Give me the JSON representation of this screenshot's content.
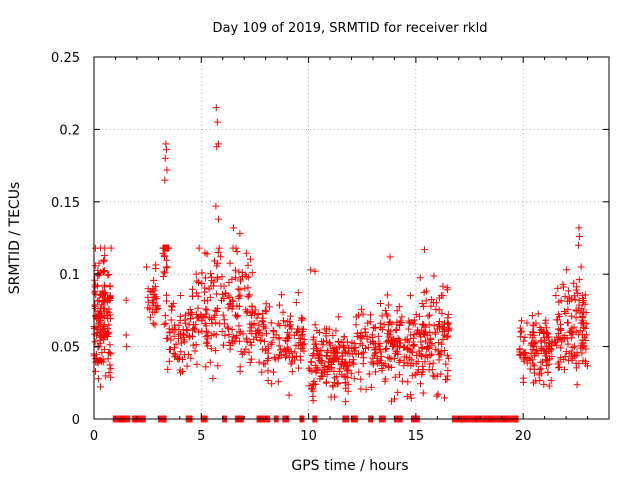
{
  "chart_data": {
    "type": "scatter",
    "title": "Day 109 of 2019, SRMTID for receiver rkld",
    "xlabel": "GPS time / hours",
    "ylabel": "SRMTID / TECUs",
    "xlim": [
      0,
      24
    ],
    "ylim": [
      0,
      0.25
    ],
    "xticks": [
      0,
      5,
      10,
      15,
      20
    ],
    "xtick_labels": [
      "0",
      "5",
      "10",
      "15",
      "20"
    ],
    "yticks": [
      0,
      0.05,
      0.1,
      0.15,
      0.2,
      0.25
    ],
    "ytick_labels": [
      "0",
      "0.05",
      "0.1",
      "0.15",
      "0.2",
      "0.25"
    ],
    "grid": true,
    "marker": "+",
    "color": "#ff0000",
    "seed": 109,
    "series": [
      {
        "name": "SRMTID",
        "clusters": [
          {
            "x": [
              0.0,
              0.8
            ],
            "y_center": 0.072,
            "y_spread": 0.025,
            "count": 150
          },
          {
            "x": [
              2.5,
              3.0
            ],
            "y_center": 0.082,
            "y_spread": 0.012,
            "count": 30
          },
          {
            "x": [
              3.2,
              3.5
            ],
            "y_center": 0.12,
            "y_spread": 0.05,
            "count": 35
          },
          {
            "x": [
              3.5,
              4.5
            ],
            "y_center": 0.055,
            "y_spread": 0.015,
            "count": 60
          },
          {
            "x": [
              4.5,
              7.5
            ],
            "y_center": 0.075,
            "y_spread": 0.025,
            "count": 200
          },
          {
            "x": [
              7.5,
              9.8
            ],
            "y_center": 0.055,
            "y_spread": 0.018,
            "count": 130
          },
          {
            "x": [
              10.0,
              12.0
            ],
            "y_center": 0.04,
            "y_spread": 0.015,
            "count": 160
          },
          {
            "x": [
              12.0,
              15.0
            ],
            "y_center": 0.05,
            "y_spread": 0.018,
            "count": 200
          },
          {
            "x": [
              15.0,
              16.6
            ],
            "y_center": 0.055,
            "y_spread": 0.022,
            "count": 130
          },
          {
            "x": [
              19.8,
              21.5
            ],
            "y_center": 0.048,
            "y_spread": 0.013,
            "count": 120
          },
          {
            "x": [
              21.5,
              23.0
            ],
            "y_center": 0.065,
            "y_spread": 0.018,
            "count": 130
          }
        ],
        "peaks": [
          {
            "x": 3.35,
            "y": 0.19
          },
          {
            "x": 3.38,
            "y": 0.186
          },
          {
            "x": 3.32,
            "y": 0.18
          },
          {
            "x": 3.4,
            "y": 0.172
          },
          {
            "x": 3.3,
            "y": 0.165
          },
          {
            "x": 5.7,
            "y": 0.215
          },
          {
            "x": 5.75,
            "y": 0.205
          },
          {
            "x": 5.8,
            "y": 0.19
          },
          {
            "x": 5.72,
            "y": 0.188
          },
          {
            "x": 5.68,
            "y": 0.147
          },
          {
            "x": 5.8,
            "y": 0.138
          },
          {
            "x": 6.5,
            "y": 0.132
          },
          {
            "x": 6.8,
            "y": 0.128
          },
          {
            "x": 15.4,
            "y": 0.117
          },
          {
            "x": 10.1,
            "y": 0.103
          },
          {
            "x": 10.3,
            "y": 0.102
          },
          {
            "x": 13.8,
            "y": 0.112
          },
          {
            "x": 22.6,
            "y": 0.132
          },
          {
            "x": 22.62,
            "y": 0.126
          },
          {
            "x": 22.58,
            "y": 0.12
          },
          {
            "x": 22.7,
            "y": 0.105
          },
          {
            "x": 0.8,
            "y": 0.118
          },
          {
            "x": 1.5,
            "y": 0.082
          },
          {
            "x": 1.5,
            "y": 0.058
          },
          {
            "x": 1.52,
            "y": 0.05
          },
          {
            "x": 2.45,
            "y": 0.105
          }
        ],
        "zero_ranges": [
          [
            0.9,
            1.7
          ],
          [
            1.8,
            2.4
          ],
          [
            3.0,
            3.4
          ],
          [
            4.3,
            4.6
          ],
          [
            5.0,
            5.3
          ],
          [
            6.0,
            6.2
          ],
          [
            6.6,
            7.0
          ],
          [
            7.6,
            8.2
          ],
          [
            8.4,
            8.6
          ],
          [
            8.8,
            9.1
          ],
          [
            9.6,
            9.8
          ],
          [
            10.2,
            10.4
          ],
          [
            11.6,
            11.9
          ],
          [
            12.0,
            12.3
          ],
          [
            12.8,
            13.0
          ],
          [
            13.3,
            13.6
          ],
          [
            14.0,
            14.4
          ],
          [
            14.8,
            15.2
          ],
          [
            16.7,
            19.8
          ]
        ]
      }
    ]
  }
}
